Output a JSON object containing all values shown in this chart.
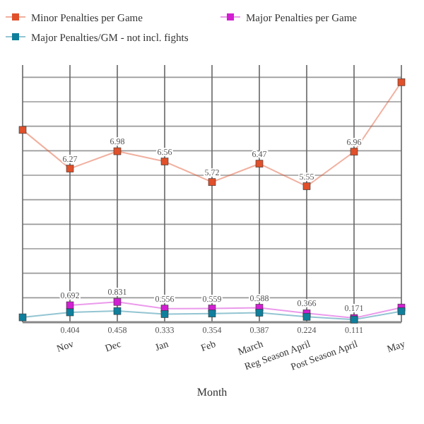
{
  "chart_data": {
    "type": "line",
    "xlabel": "Month",
    "categories": [
      null,
      "Nov",
      "Dec",
      "Jan",
      "Feb",
      "March",
      "Reg Season April",
      "Post Season April",
      "May"
    ],
    "series": [
      {
        "name": "Minor Penalties per Game",
        "color": "#e0502a",
        "values": [
          7.85,
          6.27,
          6.98,
          6.56,
          5.72,
          6.47,
          5.55,
          6.96,
          9.8
        ],
        "value_labels": [
          null,
          "6.27",
          "6.98",
          "6.56",
          "5.72",
          "6.47",
          "5.55",
          "6.96",
          null
        ]
      },
      {
        "name": "Major Penalties per Game",
        "color": "#d21fd2",
        "values": [
          null,
          0.692,
          0.831,
          0.556,
          0.559,
          0.588,
          0.366,
          0.171,
          0.6
        ],
        "value_labels": [
          null,
          "0.692",
          "0.831",
          "0.556",
          "0.559",
          "0.588",
          "0.366",
          "0.171",
          null
        ]
      },
      {
        "name": "Major Penalties/GM - not incl. fights",
        "color": "#0f7f9c",
        "values": [
          0.2,
          0.404,
          0.458,
          0.333,
          0.354,
          0.387,
          0.224,
          0.111,
          0.45
        ],
        "value_labels": [
          null,
          "0.404",
          "0.458",
          "0.333",
          "0.354",
          "0.387",
          "0.224",
          "0.111",
          null
        ]
      }
    ],
    "ylim": [
      0,
      10.5
    ],
    "yticks": [
      {
        "value": 0,
        "label": null
      },
      {
        "value": 1,
        "label": null
      },
      {
        "value": 2,
        "label": null
      },
      {
        "value": 3,
        "label": null
      },
      {
        "value": 4,
        "label": null
      },
      {
        "value": 5,
        "label": null
      },
      {
        "value": 6,
        "label": null
      },
      {
        "value": 7,
        "label": null
      },
      {
        "value": 8,
        "label": null
      },
      {
        "value": 9,
        "label": null
      },
      {
        "value": 10,
        "label": null
      }
    ],
    "grid": true,
    "legend": "top",
    "marker": "square",
    "tick_labels": "x"
  }
}
